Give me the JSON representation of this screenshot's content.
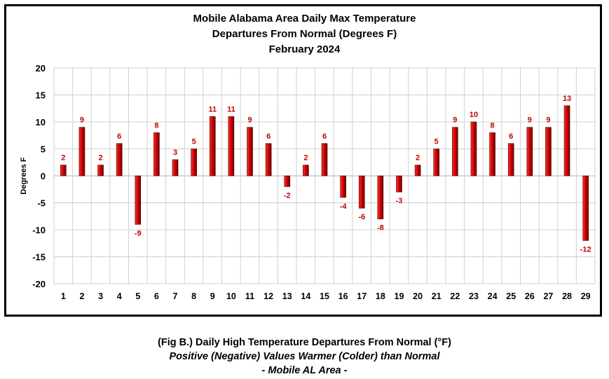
{
  "chart_data": {
    "type": "bar",
    "title": "Mobile Alabama Area Daily Max Temperature",
    "subtitle": "Departures From Normal (Degrees F)",
    "subtitle2": "February 2024",
    "xlabel": "",
    "ylabel": "Degrees F",
    "ylim": [
      -20,
      20
    ],
    "yticks": [
      "20",
      "15",
      "10",
      "5",
      "0",
      "-5",
      "-10",
      "-15",
      "-20"
    ],
    "ytick_values": [
      20,
      15,
      10,
      5,
      0,
      -5,
      -10,
      -15,
      -20
    ],
    "categories": [
      "1",
      "2",
      "3",
      "4",
      "5",
      "6",
      "7",
      "8",
      "9",
      "10",
      "11",
      "12",
      "13",
      "14",
      "15",
      "16",
      "17",
      "18",
      "19",
      "20",
      "21",
      "22",
      "23",
      "24",
      "25",
      "26",
      "27",
      "28",
      "29"
    ],
    "values": [
      2,
      9,
      2,
      6,
      -9,
      8,
      3,
      5,
      11,
      11,
      9,
      6,
      -2,
      2,
      6,
      -4,
      -6,
      -8,
      -3,
      2,
      5,
      9,
      10,
      8,
      6,
      9,
      9,
      13,
      -12
    ],
    "grid": true,
    "bar_color": "#cc0000",
    "label_color": "#c00000"
  },
  "caption": {
    "line1": "(Fig B.) Daily High Temperature Departures From Normal (°F)",
    "line2": "Positive (Negative) Values Warmer (Colder) than Normal",
    "line3": "- Mobile AL Area -"
  }
}
